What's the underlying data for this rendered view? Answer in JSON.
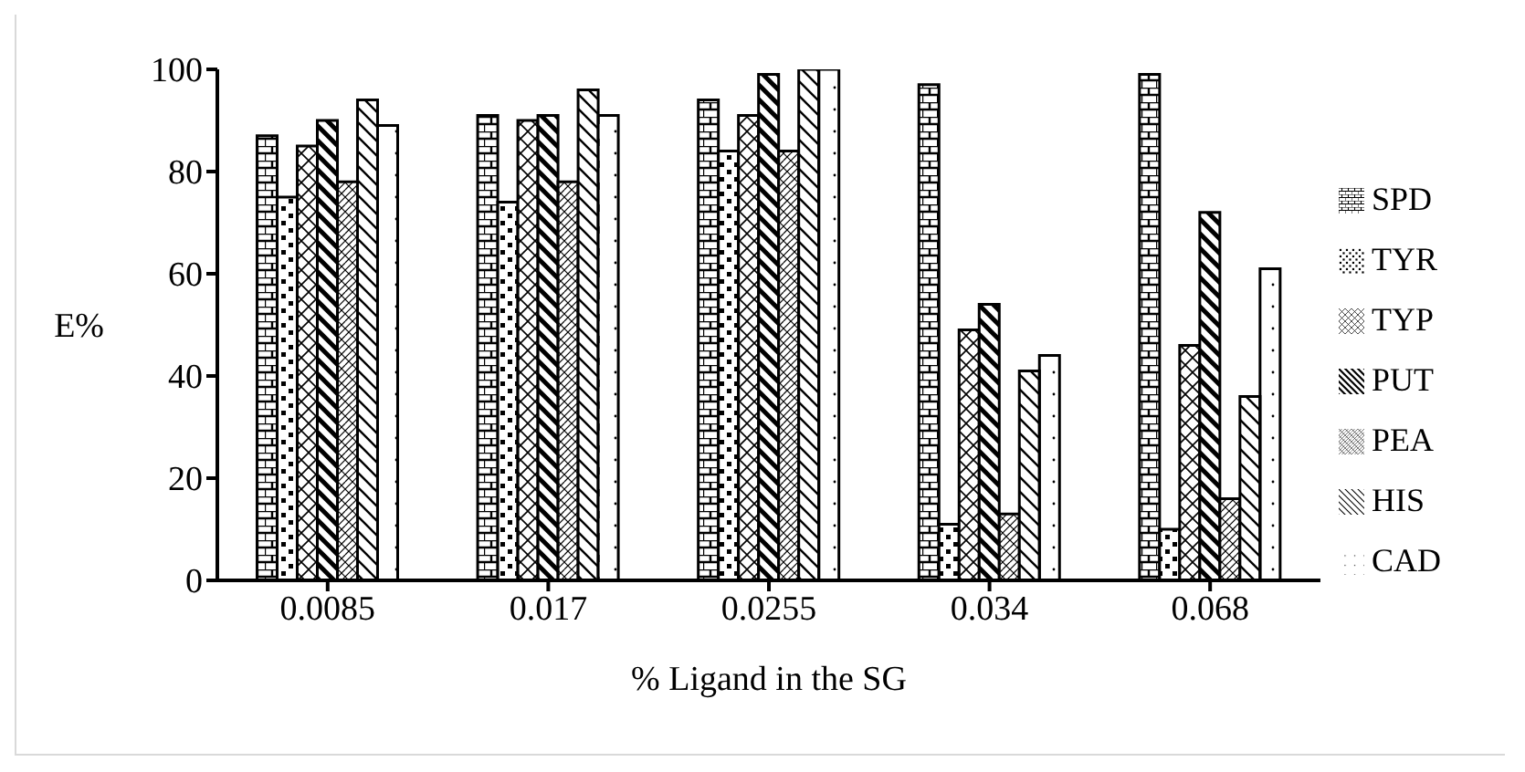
{
  "chart_data": {
    "type": "bar",
    "xlabel": "% Ligand in the SG",
    "ylabel": "E%",
    "categories": [
      "0.0085",
      "0.017",
      "0.0255",
      "0.034",
      "0.068"
    ],
    "series": [
      {
        "name": "SPD",
        "color": "#000000",
        "values": [
          87,
          91,
          94,
          97,
          99
        ]
      },
      {
        "name": "TYR",
        "color": "#000000",
        "values": [
          75,
          74,
          84,
          11,
          10
        ]
      },
      {
        "name": "TYP",
        "color": "#000000",
        "values": [
          85,
          90,
          91,
          49,
          46
        ]
      },
      {
        "name": "PUT",
        "color": "#000000",
        "values": [
          90,
          91,
          99,
          54,
          72
        ]
      },
      {
        "name": "PEA",
        "color": "#000000",
        "values": [
          78,
          78,
          84,
          13,
          16
        ]
      },
      {
        "name": "HIS",
        "color": "#000000",
        "values": [
          94,
          96,
          100,
          41,
          36
        ]
      },
      {
        "name": "CAD",
        "color": "#000000",
        "values": [
          89,
          91,
          100,
          44,
          61
        ]
      }
    ],
    "ylim": [
      0,
      100
    ],
    "yticks": [
      0,
      20,
      40,
      60,
      80,
      100
    ],
    "grid": false,
    "legend": "right"
  }
}
